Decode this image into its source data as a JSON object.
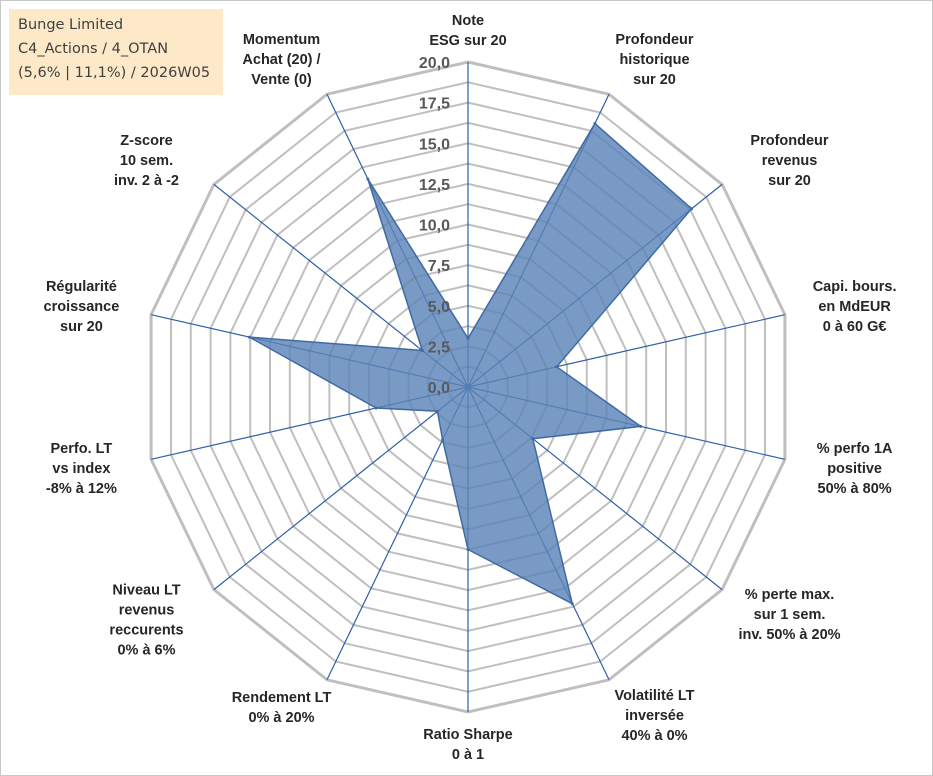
{
  "info_box": {
    "line1": "Bunge Limited",
    "line2": "C4_Actions / 4_OTAN",
    "line3": "(5,6% | 11,1%) / 2026W05"
  },
  "colors": {
    "grid": "#bfbfbf",
    "spoke": "#2f5fa8",
    "fill": "#5b84b8",
    "outline": "#3f6aa3",
    "info_bg": "#fde9c8"
  },
  "chart_data": {
    "type": "radar",
    "title": "",
    "rmin": 0,
    "rmax": 20,
    "ring_step": 1.25,
    "ticks": [
      "0,0",
      "2,5",
      "5,0",
      "7,5",
      "10,0",
      "12,5",
      "15,0",
      "17,5",
      "20,0"
    ],
    "axes": [
      {
        "label": [
          "Note",
          "ESG sur 20"
        ],
        "value": 3.0
      },
      {
        "label": [
          "Profondeur",
          "historique",
          "sur 20"
        ],
        "value": 18.0
      },
      {
        "label": [
          "Profondeur",
          "revenus",
          "sur 20"
        ],
        "value": 17.6
      },
      {
        "label": [
          "Capi. bours.",
          "en MdEUR",
          "0 à 60 G€"
        ],
        "value": 5.6
      },
      {
        "label": [
          "% perfo 1A",
          "positive",
          "50% à 80%"
        ],
        "value": 10.9
      },
      {
        "label": [
          "% perte max.",
          "sur 1 sem.",
          "inv. 50% à 20%"
        ],
        "value": 5.1
      },
      {
        "label": [
          "Volatilité LT",
          "inversée",
          "40% à 0%"
        ],
        "value": 14.8
      },
      {
        "label": [
          "Ratio Sharpe",
          "0 à 1"
        ],
        "value": 10.0
      },
      {
        "label": [
          "Rendement LT",
          "0% à 20%"
        ],
        "value": 3.6
      },
      {
        "label": [
          "Niveau LT",
          "revenus",
          "reccurents",
          "0% à 6%"
        ],
        "value": 2.4
      },
      {
        "label": [
          "Perfo. LT",
          "vs index",
          "-8% à 12%"
        ],
        "value": 5.8
      },
      {
        "label": [
          "Régularité",
          "croissance",
          "sur 20"
        ],
        "value": 13.8
      },
      {
        "label": [
          "Z-score",
          "10 sem.",
          "inv. 2 à -2"
        ],
        "value": 3.6
      },
      {
        "label": [
          "Momentum",
          "Achat (20) /",
          "Vente (0)"
        ],
        "value": 14.2
      }
    ]
  }
}
